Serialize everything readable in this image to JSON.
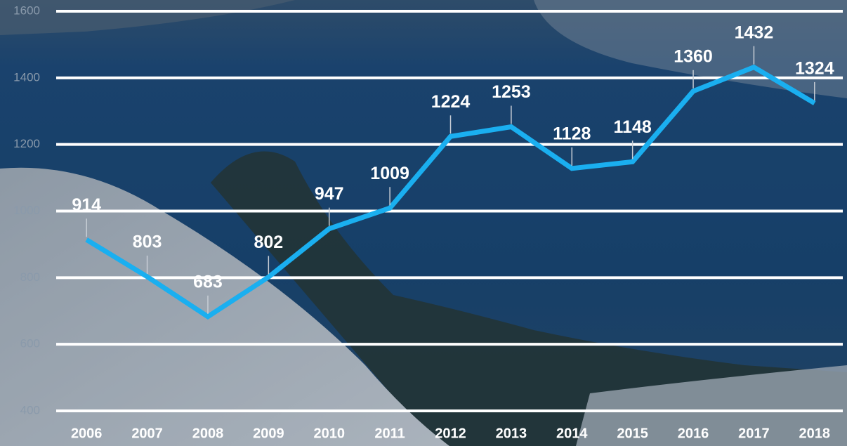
{
  "chart_data": {
    "type": "line",
    "categories": [
      "2006",
      "2007",
      "2008",
      "2009",
      "2010",
      "2011",
      "2012",
      "2013",
      "2014",
      "2015",
      "2016",
      "2017",
      "2018"
    ],
    "values": [
      914,
      803,
      683,
      802,
      947,
      1009,
      1224,
      1253,
      1128,
      1148,
      1360,
      1432,
      1324
    ],
    "color": "#1aaff0",
    "ylim": [
      400,
      1600
    ],
    "yticks": [
      400,
      600,
      800,
      1000,
      1200,
      1400,
      1600
    ],
    "grid": true
  }
}
